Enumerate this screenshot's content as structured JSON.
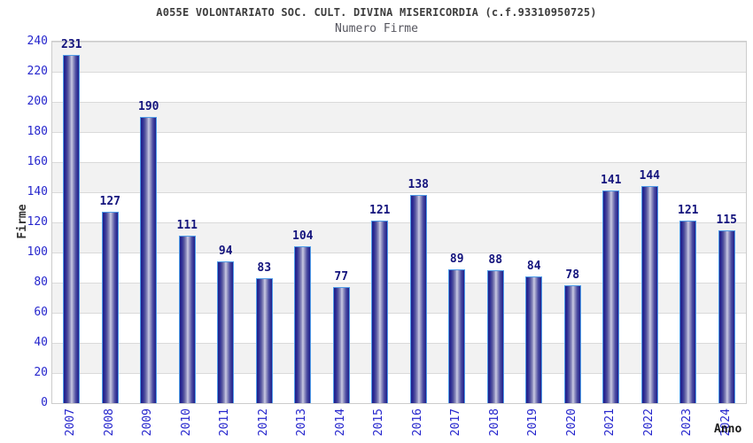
{
  "chart_data": {
    "type": "bar",
    "title": "A055E VOLONTARIATO SOC. CULT. DIVINA MISERICORDIA (c.f.93310950725)",
    "subtitle": "Numero Firme",
    "xlabel": "Anno",
    "ylabel": "Firme",
    "categories": [
      "2007",
      "2008",
      "2009",
      "2010",
      "2011",
      "2012",
      "2013",
      "2014",
      "2015",
      "2016",
      "2017",
      "2018",
      "2019",
      "2020",
      "2021",
      "2022",
      "2023",
      "2024"
    ],
    "values": [
      231,
      127,
      190,
      111,
      94,
      83,
      104,
      77,
      121,
      138,
      89,
      88,
      84,
      78,
      141,
      144,
      121,
      115
    ],
    "ylim": [
      0,
      240
    ],
    "ytick_step": 20,
    "grid": "horizontal-bands-alternating",
    "legend_position": "none",
    "colors": {
      "bar_dark": "#20208a",
      "bar_highlight": "#cbcbe4",
      "bar_border": "#4f9ce8",
      "value_label": "#14147d",
      "tick_label": "#2626cd",
      "band_gray": "#f2f2f2",
      "band_white": "#ffffff",
      "grid_line": "#dadada",
      "plot_border": "#cccccc",
      "title_color": "#3d3d3d",
      "subtitle_color": "#55555e",
      "axis_title_color": "#333333"
    }
  }
}
